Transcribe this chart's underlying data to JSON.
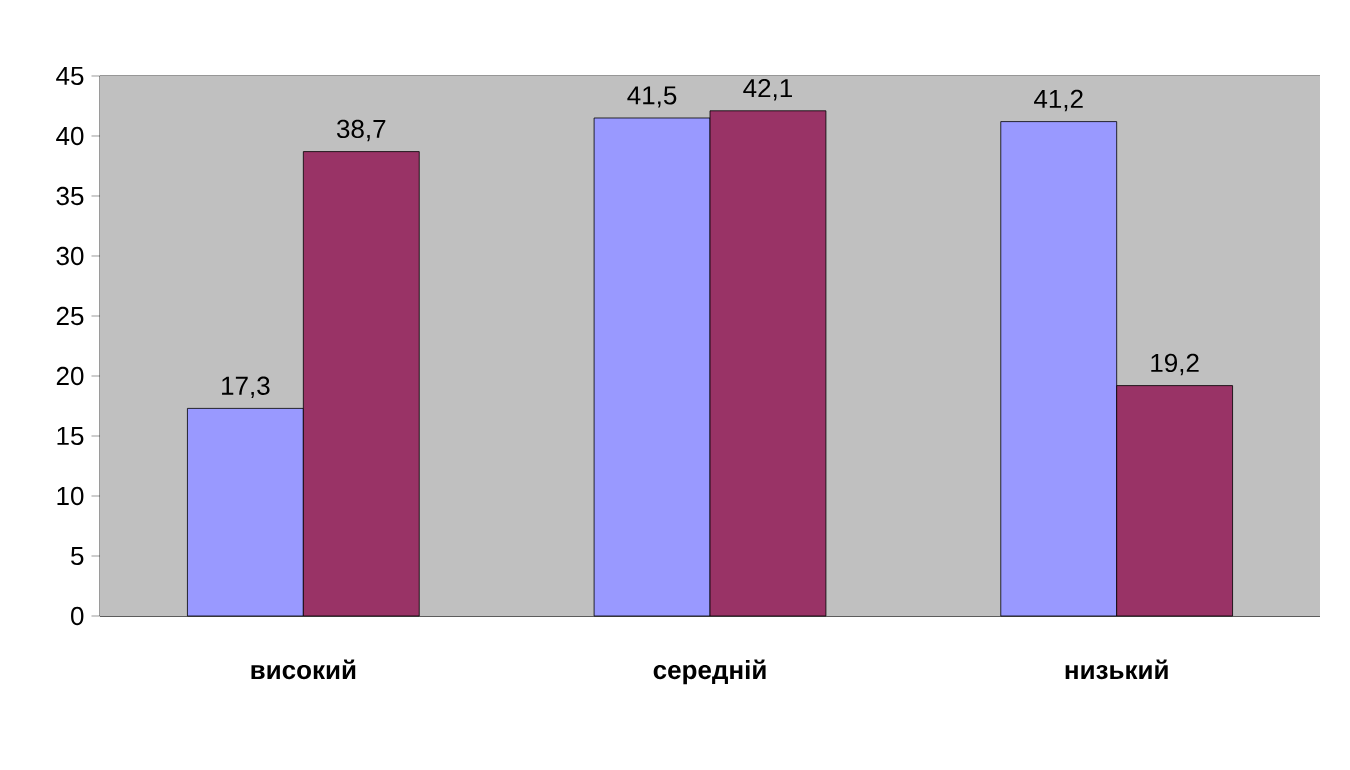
{
  "chart_data": {
    "type": "bar",
    "categories": [
      "високий",
      "середній",
      "низький"
    ],
    "series": [
      {
        "color": "#9999ff",
        "values": [
          17.3,
          41.5,
          41.2
        ],
        "value_labels": [
          "17,3",
          "41,5",
          "41,2"
        ]
      },
      {
        "color": "#993366",
        "values": [
          38.7,
          42.1,
          19.2
        ],
        "value_labels": [
          "38,7",
          "42,1",
          "19,2"
        ]
      }
    ],
    "ylim": [
      0,
      45
    ],
    "yticks": [
      0,
      5,
      10,
      15,
      20,
      25,
      30,
      35,
      40,
      45
    ],
    "grid": "y"
  }
}
